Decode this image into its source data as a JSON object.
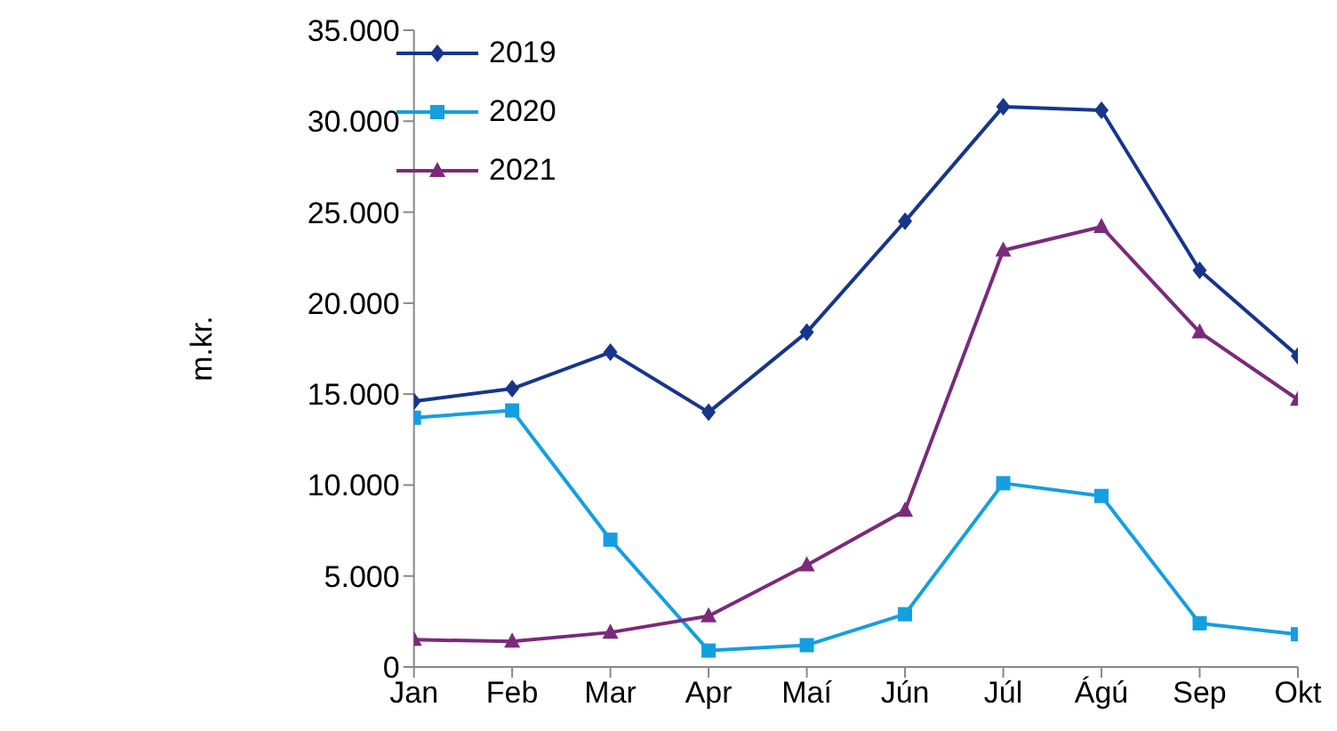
{
  "chart_data": {
    "type": "line",
    "ylabel": "m.kr.",
    "categories": [
      "Jan",
      "Feb",
      "Mar",
      "Apr",
      "Maí",
      "Jún",
      "Júl",
      "Ágú",
      "Sep",
      "Okt"
    ],
    "series": [
      {
        "name": "2019",
        "color": "#17358b",
        "marker": "diamond",
        "values": [
          14600,
          15300,
          17300,
          14000,
          18400,
          24500,
          30800,
          30600,
          21800,
          17100
        ]
      },
      {
        "name": "2020",
        "color": "#149fe0",
        "marker": "square",
        "values": [
          13700,
          14100,
          7000,
          900,
          1200,
          2900,
          10100,
          9400,
          2400,
          1800
        ]
      },
      {
        "name": "2021",
        "color": "#7a2a7c",
        "marker": "triangle",
        "values": [
          1500,
          1400,
          1900,
          2800,
          5600,
          8600,
          22900,
          24200,
          18400,
          14700
        ]
      }
    ],
    "ylim": [
      0,
      35000
    ],
    "yticks": [
      {
        "value": 0,
        "label": "0"
      },
      {
        "value": 5000,
        "label": "5.000"
      },
      {
        "value": 10000,
        "label": "10.000"
      },
      {
        "value": 15000,
        "label": "15.000"
      },
      {
        "value": 20000,
        "label": "20.000"
      },
      {
        "value": 25000,
        "label": "25.000"
      },
      {
        "value": 30000,
        "label": "30.000"
      },
      {
        "value": 35000,
        "label": "35.000"
      }
    ],
    "grid": false,
    "legend": "top left",
    "line_style": "solid"
  }
}
